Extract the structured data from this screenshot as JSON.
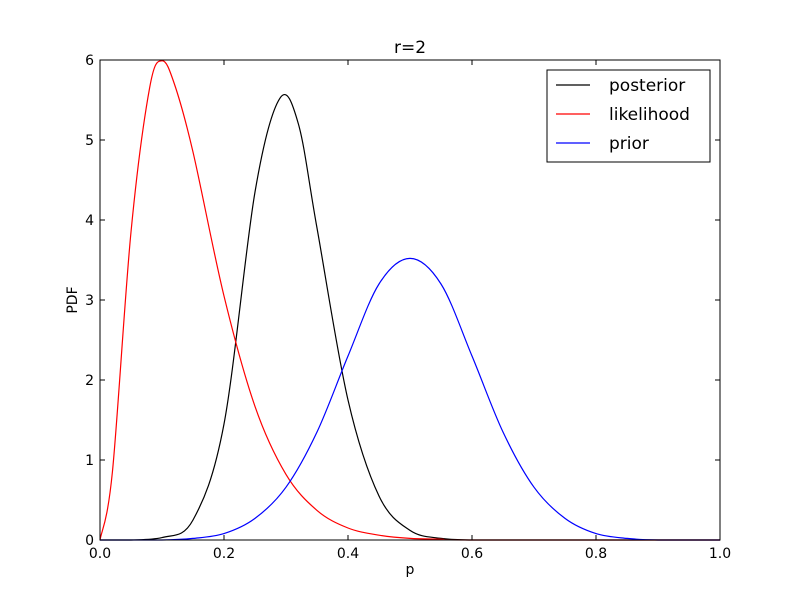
{
  "chart_data": {
    "type": "line",
    "title": "r=2",
    "xlabel": "p",
    "ylabel": "PDF",
    "xlim": [
      0.0,
      1.0
    ],
    "ylim": [
      0,
      6
    ],
    "x_ticks": [
      "0.0",
      "0.2",
      "0.4",
      "0.6",
      "0.8",
      "1.0"
    ],
    "y_ticks": [
      "0",
      "1",
      "2",
      "3",
      "4",
      "5",
      "6"
    ],
    "grid": false,
    "legend_position": "top-right",
    "series": [
      {
        "name": "posterior",
        "color": "#000000",
        "x": [
          0.0,
          0.05,
          0.1,
          0.15,
          0.2,
          0.25,
          0.29,
          0.32,
          0.35,
          0.4,
          0.45,
          0.5,
          0.55,
          0.6,
          0.65,
          0.7,
          1.0
        ],
        "y": [
          0.0,
          0.0,
          0.03,
          0.25,
          1.45,
          4.35,
          5.52,
          5.2,
          3.9,
          1.75,
          0.55,
          0.12,
          0.02,
          0.0,
          0.0,
          0.0,
          0.0
        ]
      },
      {
        "name": "likelihood",
        "color": "#ff0000",
        "x": [
          0.0,
          0.02,
          0.05,
          0.08,
          0.1,
          0.12,
          0.15,
          0.2,
          0.25,
          0.3,
          0.35,
          0.4,
          0.45,
          0.5,
          0.55,
          0.6,
          1.0
        ],
        "y": [
          0.0,
          0.85,
          3.85,
          5.65,
          5.99,
          5.7,
          4.85,
          3.05,
          1.67,
          0.82,
          0.37,
          0.15,
          0.06,
          0.02,
          0.01,
          0.0,
          0.0
        ]
      },
      {
        "name": "prior",
        "color": "#0000ff",
        "x": [
          0.0,
          0.1,
          0.15,
          0.2,
          0.25,
          0.3,
          0.35,
          0.4,
          0.45,
          0.5,
          0.55,
          0.6,
          0.65,
          0.7,
          0.75,
          0.8,
          0.85,
          0.9,
          1.0
        ],
        "y": [
          0.0,
          0.0,
          0.02,
          0.08,
          0.27,
          0.66,
          1.35,
          2.3,
          3.2,
          3.52,
          3.2,
          2.3,
          1.35,
          0.66,
          0.27,
          0.08,
          0.02,
          0.0,
          0.0
        ]
      }
    ]
  }
}
